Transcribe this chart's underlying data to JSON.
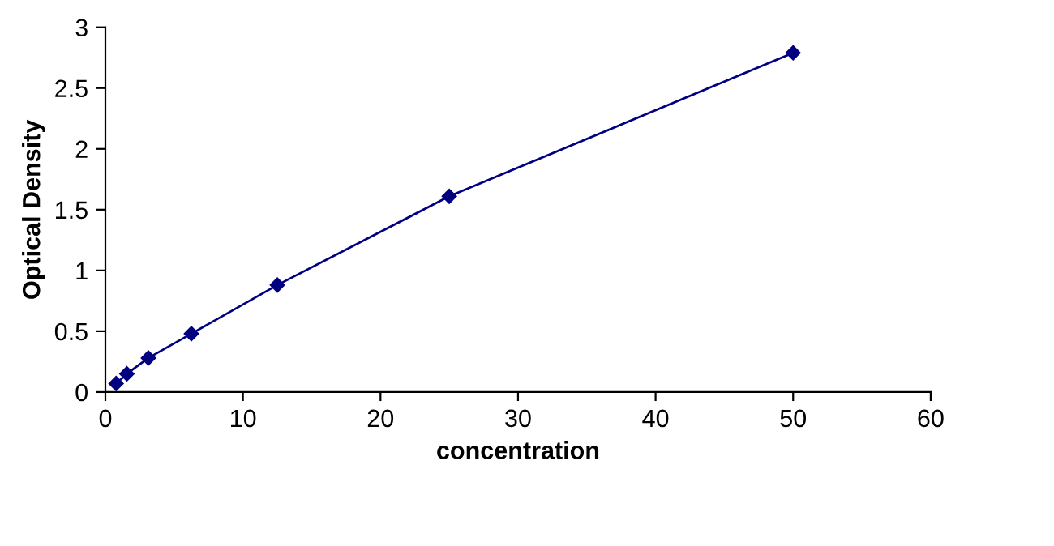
{
  "chart_data": {
    "type": "line",
    "xlabel": "concentration",
    "ylabel": "Optical Density",
    "x": [
      0.78,
      1.56,
      3.125,
      6.25,
      12.5,
      25,
      50
    ],
    "series": [
      {
        "color": "#000080",
        "values": [
          0.07,
          0.15,
          0.28,
          0.48,
          0.88,
          1.61,
          2.79
        ]
      }
    ],
    "xlim": [
      0,
      60
    ],
    "xticks": [
      0,
      10,
      20,
      30,
      40,
      50,
      60
    ],
    "ylim": [
      0,
      3
    ],
    "yticks": [
      0,
      0.5,
      1,
      1.5,
      2,
      2.5,
      3
    ],
    "grid": false,
    "legend": false,
    "marker": "diamond",
    "line_style": "solid"
  }
}
